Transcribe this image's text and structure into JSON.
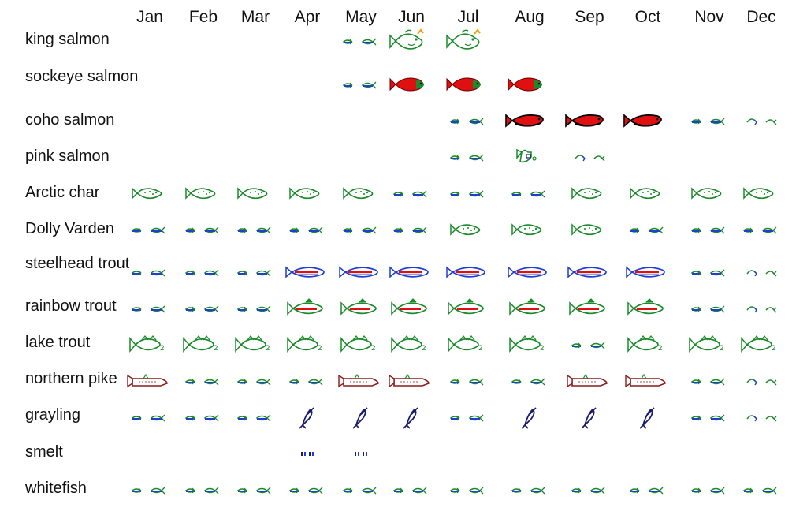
{
  "months": [
    "Jan",
    "Feb",
    "Mar",
    "Apr",
    "May",
    "Jun",
    "Jul",
    "Aug",
    "Sep",
    "Oct",
    "Nov",
    "Dec"
  ],
  "icon_legend": {
    "S": "small-fish-icon",
    "T": "tiny-fish-icon",
    "K": "king-salmon-icon",
    "R": "red-salmon-icon",
    "C": "coho-salmon-icon",
    "H": "humpback-pink-salmon-icon",
    "A": "char-icon",
    "P": "steelhead-icon",
    "B": "rainbow-trout-icon",
    "L": "lake-trout-icon",
    "N": "pike-icon",
    "G": "grayling-icon",
    "M": "smelt-icon"
  },
  "colors": {
    "green": "#1a8a2a",
    "blue": "#1f3fd0",
    "red": "#e01010",
    "dark_red": "#8b1a1a",
    "navy": "#1a1a6e",
    "orange": "#f0a000"
  },
  "species": [
    {
      "name": "king salmon",
      "cells": [
        "",
        "",
        "",
        "",
        "S",
        "K",
        "K",
        "",
        "",
        "",
        "",
        ""
      ]
    },
    {
      "name": "sockeye salmon",
      "cells": [
        "",
        "",
        "",
        "",
        "S",
        "R",
        "R",
        "R",
        "",
        "",
        "",
        ""
      ]
    },
    {
      "name": "coho salmon",
      "cells": [
        "",
        "",
        "",
        "",
        "",
        "",
        "S",
        "C",
        "C",
        "C",
        "S",
        "T"
      ]
    },
    {
      "name": "pink salmon",
      "cells": [
        "",
        "",
        "",
        "",
        "",
        "",
        "S",
        "H",
        "T",
        "",
        "",
        ""
      ]
    },
    {
      "name": "Arctic char",
      "cells": [
        "A",
        "A",
        "A",
        "A",
        "A",
        "S",
        "S",
        "S",
        "A",
        "A",
        "A",
        "A"
      ]
    },
    {
      "name": "Dolly Varden",
      "cells": [
        "S",
        "S",
        "S",
        "S",
        "S",
        "S",
        "A",
        "A",
        "A",
        "S",
        "S",
        "S"
      ]
    },
    {
      "name": "steelhead trout",
      "cells": [
        "S",
        "S",
        "S",
        "P",
        "P",
        "P",
        "P",
        "P",
        "P",
        "P",
        "S",
        "T"
      ]
    },
    {
      "name": "rainbow trout",
      "cells": [
        "S",
        "S",
        "S",
        "B",
        "B",
        "B",
        "B",
        "B",
        "B",
        "B",
        "S",
        "T"
      ]
    },
    {
      "name": "lake trout",
      "cells": [
        "L",
        "L",
        "L",
        "L",
        "L",
        "L",
        "L",
        "L",
        "S",
        "L",
        "L",
        "L"
      ]
    },
    {
      "name": "northern pike",
      "cells": [
        "N",
        "S",
        "S",
        "S",
        "N",
        "N",
        "S",
        "S",
        "N",
        "N",
        "S",
        "T"
      ]
    },
    {
      "name": "grayling",
      "cells": [
        "S",
        "S",
        "S",
        "G",
        "G",
        "G",
        "S",
        "G",
        "G",
        "G",
        "S",
        "T"
      ]
    },
    {
      "name": "smelt",
      "cells": [
        "",
        "",
        "",
        "M",
        "M",
        "",
        "",
        "",
        "",
        "",
        "",
        ""
      ]
    },
    {
      "name": "whitefish",
      "cells": [
        "S",
        "S",
        "S",
        "S",
        "S",
        "S",
        "S",
        "S",
        "S",
        "S",
        "S",
        "S"
      ]
    }
  ]
}
